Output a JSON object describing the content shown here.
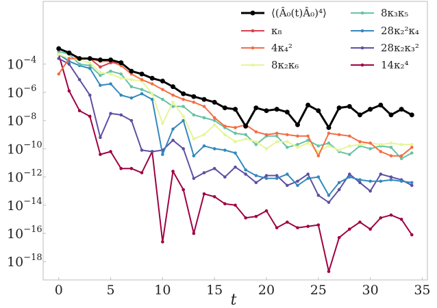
{
  "chart_data": {
    "type": "line",
    "xlabel": "t",
    "ylabel": "",
    "xlim": [
      -1.5,
      35.5
    ],
    "ylim_log10": [
      -19.3,
      0.45
    ],
    "yscale": "log",
    "grid": false,
    "legend_placement": "top-right",
    "x_ticks": [
      0,
      5,
      10,
      15,
      20,
      25,
      30,
      35
    ],
    "x_tick_labels": [
      "0",
      "5",
      "10",
      "15",
      "20",
      "25",
      "30",
      "35"
    ],
    "y_ticks_log10": [
      -4,
      -6,
      -8,
      -10,
      -12,
      -14,
      -16,
      -18
    ],
    "y_tick_mantissa": "10",
    "y_tick_exponents": [
      "−4",
      "−6",
      "−8",
      "−10",
      "−12",
      "−14",
      "−16",
      "−18"
    ],
    "x": [
      0,
      1,
      2,
      3,
      4,
      5,
      6,
      7,
      8,
      9,
      10,
      11,
      12,
      13,
      14,
      15,
      16,
      17,
      18,
      19,
      20,
      21,
      22,
      23,
      24,
      25,
      26,
      27,
      28,
      29,
      30,
      31,
      32,
      33,
      34
    ],
    "series": [
      {
        "name": "⟨(Â₀(t)Â₀)⁴⟩",
        "color": "#000000",
        "width": 3,
        "markersize": 3.5,
        "exponents": [
          -2.9,
          -3.2,
          -3.6,
          -3.6,
          -3.7,
          -3.7,
          -3.9,
          -4.5,
          -4.7,
          -5.0,
          -5.2,
          -5.6,
          -6.1,
          -6.3,
          -6.5,
          -6.7,
          -7.1,
          -7.2,
          -8.4,
          -7.1,
          -7.3,
          -7.2,
          -7.4,
          -8.3,
          -6.9,
          -7.3,
          -8.5,
          -7.1,
          -7.0,
          -7.6,
          -7.2,
          -6.9,
          -7.6,
          -7.2,
          -7.6
        ]
      },
      {
        "name": "κ₈",
        "color": "#d53e4f",
        "width": 2,
        "markersize": 2.3,
        "exponents": [
          -2.9,
          -3.2,
          -3.6,
          -3.6,
          -4.2,
          -3.9,
          -3.9,
          -4.5,
          -4.7,
          -5.0,
          -5.2,
          -5.6,
          -6.1,
          -6.3,
          -6.5,
          -6.7,
          -7.1,
          -7.2,
          -8.4,
          -7.1,
          -7.3,
          -7.2,
          -7.4,
          -8.3,
          -6.9,
          -7.3,
          -8.5,
          -7.1,
          -7.0,
          -7.6,
          -7.2,
          -6.9,
          -7.6,
          -7.2,
          -7.6
        ]
      },
      {
        "name": "4κ₄²",
        "color": "#f46d43",
        "width": 2,
        "markersize": 2.3,
        "exponents": [
          -4.7,
          -3.6,
          -3.6,
          -3.6,
          -3.8,
          -3.8,
          -4.1,
          -4.7,
          -5.1,
          -5.4,
          -5.8,
          -6.2,
          -6.5,
          -6.7,
          -7.0,
          -7.8,
          -8.4,
          -8.5,
          -8.3,
          -8.8,
          -9.0,
          -8.9,
          -9.0,
          -9.1,
          -9.1,
          -10.5,
          -8.9,
          -9.0,
          -9.1,
          -9.5,
          -9.6,
          -10.2,
          -10.5,
          -10.5,
          -9.9
        ]
      },
      {
        "name": "8κ₂κ₆",
        "color": "#e6f598",
        "width": 2,
        "markersize": 2.3,
        "exponents": [
          -3.3,
          -3.6,
          -3.7,
          -3.9,
          -4.6,
          -4.7,
          -5.0,
          -5.1,
          -5.2,
          -6.1,
          -8.2,
          -6.7,
          -7.7,
          -9.3,
          -9.0,
          -8.3,
          -9.0,
          -9.5,
          -9.3,
          -9.5,
          -10.0,
          -9.5,
          -9.5,
          -9.9,
          -9.6,
          -10.2,
          -9.8,
          -10.1,
          -9.8,
          -9.7,
          -9.6,
          -9.7,
          -9.6,
          -9.7,
          -9.7
        ]
      },
      {
        "name": "8κ₃κ₅",
        "color": "#66c2a5",
        "width": 2,
        "markersize": 2.3,
        "exponents": [
          -3.1,
          -3.3,
          -4.0,
          -4.1,
          -4.8,
          -4.5,
          -4.7,
          -5.6,
          -5.8,
          -6.1,
          -6.5,
          -7.0,
          -7.0,
          -7.6,
          -7.8,
          -8.0,
          -8.5,
          -8.9,
          -9.0,
          -9.7,
          -9.1,
          -9.1,
          -9.9,
          -9.7,
          -9.4,
          -9.8,
          -9.6,
          -10.2,
          -10.4,
          -9.8,
          -10.0,
          -9.8,
          -9.9,
          -10.7,
          -10.3
        ]
      },
      {
        "name": "28κ₂²κ₄",
        "color": "#3288bd",
        "width": 2,
        "markersize": 2.3,
        "exponents": [
          -3.3,
          -3.8,
          -4.1,
          -4.3,
          -5.5,
          -5.4,
          -6.2,
          -6.4,
          -6.1,
          -6.5,
          -10.4,
          -8.6,
          -8.0,
          -10.5,
          -9.8,
          -10.0,
          -10.1,
          -10.3,
          -11.5,
          -11.9,
          -12.1,
          -12.1,
          -11.8,
          -12.6,
          -12.1,
          -12.0,
          -13.3,
          -12.4,
          -12.0,
          -12.2,
          -12.3,
          -12.3,
          -12.2,
          -12.3,
          -12.4
        ]
      },
      {
        "name": "28κ₂κ₃²",
        "color": "#5e4fa2",
        "width": 2,
        "markersize": 2.3,
        "exponents": [
          -3.6,
          -4.0,
          -5.1,
          -6.2,
          -9.2,
          -7.5,
          -7.6,
          -8.0,
          -10.1,
          -10.2,
          -10.1,
          -9.4,
          -10.0,
          -12.1,
          -11.7,
          -11.4,
          -12.0,
          -11.3,
          -11.8,
          -12.4,
          -11.9,
          -11.9,
          -12.6,
          -12.3,
          -11.8,
          -13.3,
          -13.8,
          -12.9,
          -11.8,
          -12.4,
          -13.0,
          -11.8,
          -12.0,
          -12.2,
          -12.6
        ]
      },
      {
        "name": "14κ₂⁴",
        "color": "#9e0142",
        "width": 2,
        "markersize": 2.3,
        "exponents": [
          -3.3,
          -5.9,
          -7.3,
          -7.7,
          -10.4,
          -10.2,
          -11.4,
          -11.4,
          -11.7,
          -10.2,
          -16.6,
          -11.6,
          -12.9,
          -16.0,
          -13.2,
          -13.4,
          -13.9,
          -14.0,
          -14.9,
          -14.8,
          -14.4,
          -15.6,
          -15.2,
          -15.6,
          -15.5,
          -15.4,
          -18.7,
          -16.3,
          -15.7,
          -15.2,
          -15.7,
          -14.9,
          -14.7,
          -15.0,
          -16.1
        ]
      }
    ]
  }
}
